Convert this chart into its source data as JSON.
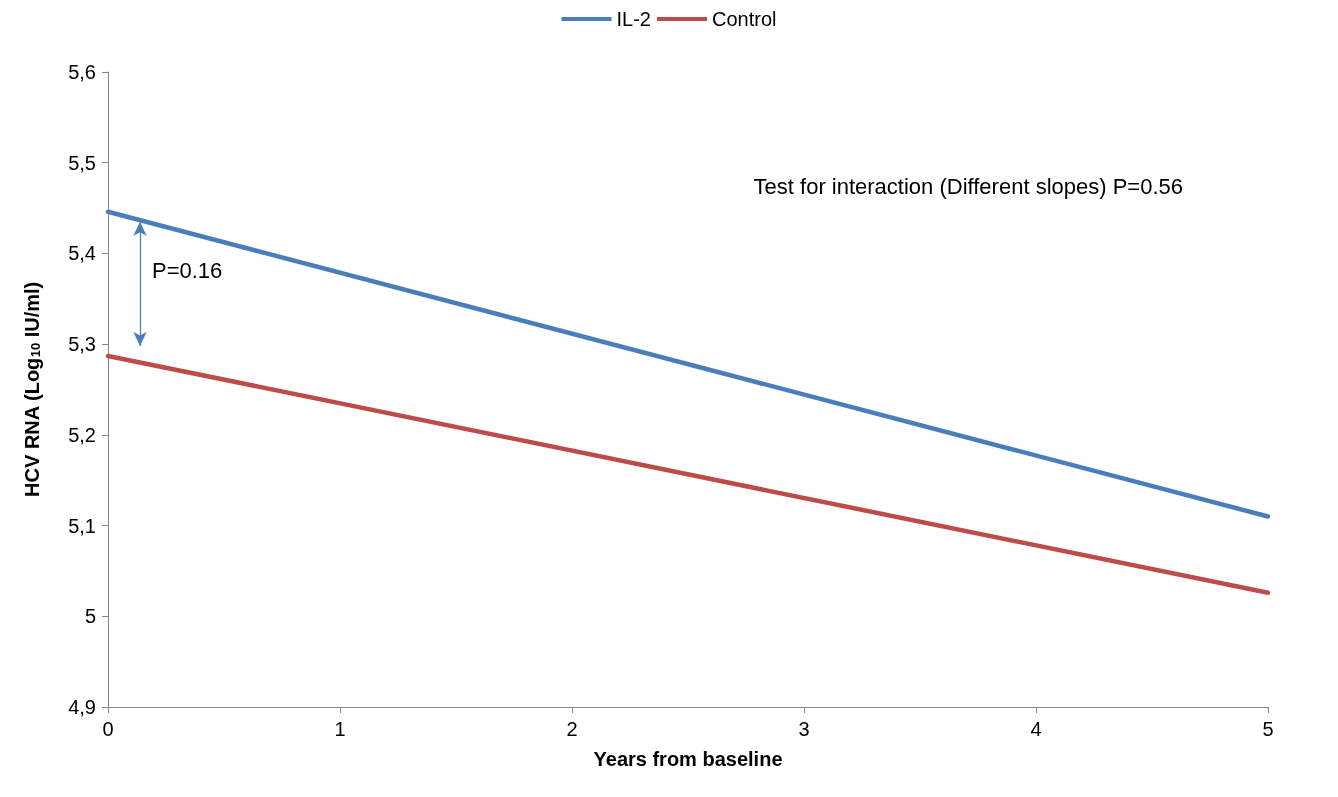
{
  "chart_data": {
    "type": "line",
    "xlabel": "Years from baseline",
    "ylabel": "HCV RNA (Log$_{10}$ IU/ml)",
    "x": [
      0,
      5
    ],
    "series": [
      {
        "name": "IL-2",
        "color": "#4a7ebb",
        "values": [
          5.446,
          5.11
        ]
      },
      {
        "name": "Control",
        "color": "#be4b48",
        "values": [
          5.287,
          5.026
        ]
      }
    ],
    "xlim": [
      0,
      5
    ],
    "xticks": [
      0,
      1,
      2,
      3,
      4,
      5
    ],
    "ylim": [
      4.9,
      5.6
    ],
    "yticks": [
      {
        "value": 4.9,
        "label": "4,9"
      },
      5,
      {
        "value": 5.1,
        "label": "5,1"
      },
      {
        "value": 5.2,
        "label": "5,2"
      },
      {
        "value": 5.3,
        "label": "5,3"
      },
      {
        "value": 5.4,
        "label": "5,4"
      },
      {
        "value": 5.5,
        "label": "5,5"
      },
      {
        "value": 5.6,
        "label": "5,6"
      }
    ],
    "annotations": [
      "Test for interaction (Different slopes) P=0.56",
      "P=0.16"
    ],
    "grid": false,
    "legend": "top",
    "marker": "none",
    "line_style": "solid"
  }
}
